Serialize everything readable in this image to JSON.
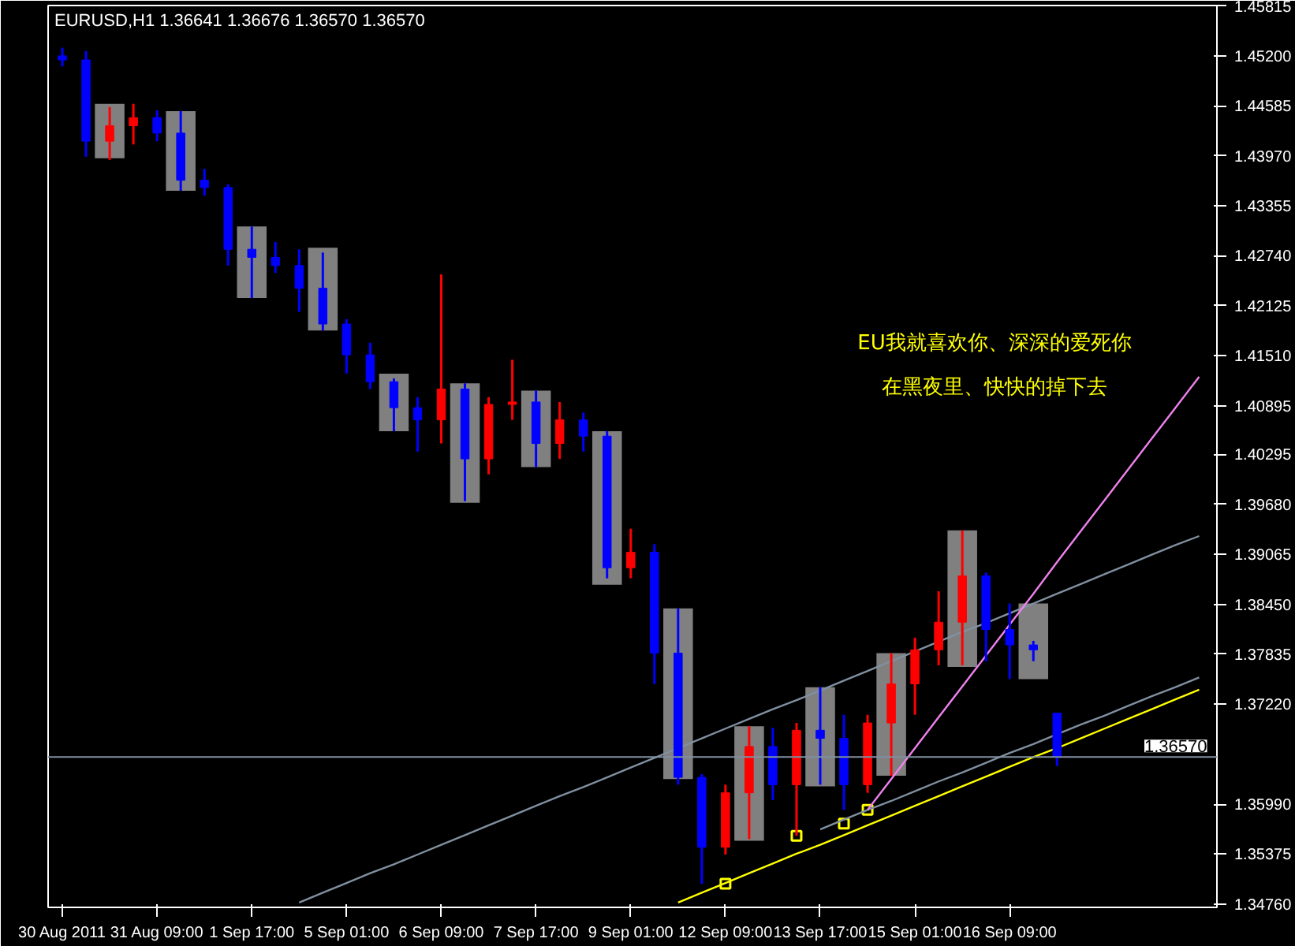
{
  "chart_data": {
    "type": "candlestick",
    "title": "EURUSD,H1  1.36641 1.36676 1.36570 1.36570",
    "categories": [
      "30 Aug 2011",
      null,
      null,
      null,
      "31 Aug 09:00",
      null,
      null,
      null,
      "1 Sep 17:00",
      null,
      null,
      null,
      "5 Sep 01:00",
      null,
      null,
      null,
      "6 Sep 09:00",
      null,
      null,
      null,
      "7 Sep 17:00",
      null,
      null,
      null,
      "9 Sep 01:00",
      null,
      null,
      null,
      "12 Sep 09:00",
      null,
      null,
      null,
      "13 Sep 17:00",
      null,
      null,
      null,
      "15 Sep 01:00",
      null,
      null,
      null,
      "16 Sep 09:00",
      null,
      null,
      null,
      null,
      null,
      null,
      null,
      null
    ],
    "ohlc": [
      [
        1.452,
        1.453,
        1.4507,
        1.4515
      ],
      [
        1.4515,
        1.4526,
        1.4396,
        1.4415
      ],
      [
        1.4415,
        1.4457,
        1.4392,
        1.4434
      ],
      [
        1.4434,
        1.4461,
        1.4411,
        1.4444
      ],
      [
        1.4444,
        1.4453,
        1.4415,
        1.4425
      ],
      [
        1.4425,
        1.4452,
        1.4354,
        1.4367
      ],
      [
        1.4367,
        1.4381,
        1.4348,
        1.4358
      ],
      [
        1.4358,
        1.4362,
        1.4262,
        1.4282
      ],
      [
        1.4282,
        1.431,
        1.4222,
        1.4272
      ],
      [
        1.4272,
        1.4291,
        1.4253,
        1.4262
      ],
      [
        1.4262,
        1.4282,
        1.4205,
        1.4234
      ],
      [
        1.4234,
        1.4278,
        1.4182,
        1.419
      ],
      [
        1.419,
        1.4196,
        1.4129,
        1.4152
      ],
      [
        1.4152,
        1.4167,
        1.411,
        1.4119
      ],
      [
        1.4119,
        1.4123,
        1.4058,
        1.4087
      ],
      [
        1.4087,
        1.41,
        1.4033,
        1.4072
      ],
      [
        1.4072,
        1.4251,
        1.4043,
        1.411
      ],
      [
        1.411,
        1.4117,
        1.3972,
        1.4024
      ],
      [
        1.4024,
        1.41,
        1.4005,
        1.4091
      ],
      [
        1.4091,
        1.4146,
        1.4072,
        1.4094
      ],
      [
        1.4094,
        1.4108,
        1.4014,
        1.4043
      ],
      [
        1.4043,
        1.4094,
        1.4024,
        1.4072
      ],
      [
        1.4072,
        1.4081,
        1.4033,
        1.4052
      ],
      [
        1.4052,
        1.4058,
        1.3877,
        1.389
      ],
      [
        1.389,
        1.3938,
        1.3877,
        1.3909
      ],
      [
        1.3909,
        1.3919,
        1.3747,
        1.3785
      ],
      [
        1.3785,
        1.384,
        1.3623,
        1.3632
      ],
      [
        1.3632,
        1.3636,
        1.3501,
        1.3546
      ],
      [
        1.3546,
        1.3623,
        1.3537,
        1.3613
      ],
      [
        1.3613,
        1.3695,
        1.3556,
        1.367
      ],
      [
        1.367,
        1.3693,
        1.3604,
        1.3623
      ],
      [
        1.3623,
        1.3699,
        1.356,
        1.369
      ],
      [
        1.369,
        1.3743,
        1.3623,
        1.368
      ],
      [
        1.368,
        1.3709,
        1.3592,
        1.3623
      ],
      [
        1.3623,
        1.3709,
        1.3613,
        1.3699
      ],
      [
        1.3699,
        1.3785,
        1.3634,
        1.3747
      ],
      [
        1.3747,
        1.3804,
        1.3709,
        1.3789
      ],
      [
        1.3789,
        1.3861,
        1.377,
        1.3823
      ],
      [
        1.3823,
        1.3936,
        1.377,
        1.388
      ],
      [
        1.388,
        1.3884,
        1.3775,
        1.3814
      ],
      [
        1.3814,
        1.3846,
        1.3753,
        1.3795
      ],
      [
        1.3795,
        1.38,
        1.3775,
        1.3789
      ],
      [
        1.3711,
        1.3711,
        1.3646,
        1.3657
      ],
      null,
      null,
      null,
      null,
      null,
      null
    ],
    "colors": [
      "#0000ff",
      "#0000ff",
      "#ff0000",
      "#ff0000",
      "#0000ff",
      "#0000ff",
      "#0000ff",
      "#0000ff",
      "#0000ff",
      "#0000ff",
      "#0000ff",
      "#0000ff",
      "#0000ff",
      "#0000ff",
      "#0000ff",
      "#0000ff",
      "#ff0000",
      "#0000ff",
      "#ff0000",
      "#ff0000",
      "#0000ff",
      "#ff0000",
      "#0000ff",
      "#0000ff",
      "#ff0000",
      "#0000ff",
      "#0000ff",
      "#0000ff",
      "#ff0000",
      "#ff0000",
      "#0000ff",
      "#ff0000",
      "#0000ff",
      "#0000ff",
      "#ff0000",
      "#ff0000",
      "#ff0000",
      "#ff0000",
      "#ff0000",
      "#0000ff",
      "#0000ff",
      "#0000ff",
      "#0000ff",
      null,
      null,
      null,
      null,
      null,
      null
    ],
    "series": [
      {
        "type": "bar",
        "color": "#808080",
        "base": [
          null,
          null,
          1.4394,
          null,
          null,
          1.4354,
          null,
          null,
          1.4222,
          null,
          null,
          1.4182,
          null,
          null,
          1.4058,
          null,
          null,
          1.397,
          null,
          null,
          1.4014,
          null,
          null,
          1.3869,
          null,
          null,
          1.363,
          null,
          null,
          1.3554,
          null,
          null,
          1.3621,
          null,
          null,
          1.3634,
          null,
          null,
          1.3768,
          null,
          null,
          1.3753,
          null,
          null,
          null,
          null,
          null,
          null,
          null
        ],
        "values": [
          null,
          null,
          0.0067,
          null,
          null,
          0.0098,
          null,
          null,
          0.0088,
          null,
          null,
          0.0102,
          null,
          null,
          0.0071,
          null,
          null,
          0.0147,
          null,
          null,
          0.0094,
          null,
          null,
          0.0189,
          null,
          null,
          0.021,
          null,
          null,
          0.0141,
          null,
          null,
          0.0122,
          null,
          null,
          0.0151,
          null,
          null,
          0.0168,
          null,
          null,
          0.0093,
          null,
          null,
          null,
          null,
          null,
          null,
          null
        ]
      },
      {
        "type": "line",
        "color": "#ffff00",
        "values": [
          null,
          null,
          null,
          null,
          null,
          null,
          null,
          null,
          null,
          null,
          null,
          null,
          null,
          null,
          null,
          null,
          null,
          null,
          null,
          null,
          null,
          null,
          null,
          null,
          null,
          null,
          1.3478,
          1.349,
          1.3502,
          1.3514,
          1.3526,
          1.3538,
          1.3549,
          1.3561,
          1.3573,
          1.3585,
          1.3597,
          1.3609,
          1.3621,
          1.3633,
          1.3645,
          1.3657,
          1.3668,
          1.368,
          1.3692,
          1.3704,
          1.3716,
          1.3728,
          1.374
        ]
      },
      {
        "type": "line",
        "color": "#8090a0",
        "values": [
          null,
          null,
          null,
          null,
          null,
          null,
          null,
          null,
          null,
          null,
          null,
          null,
          null,
          null,
          null,
          null,
          null,
          null,
          null,
          null,
          null,
          null,
          null,
          null,
          null,
          null,
          null,
          null,
          null,
          null,
          null,
          null,
          1.3568,
          1.358,
          1.3592,
          1.3603,
          1.3615,
          1.3627,
          1.3638,
          1.365,
          1.3662,
          1.3673,
          1.3685,
          1.3697,
          1.3708,
          1.372,
          1.3732,
          1.3743,
          1.3755
        ]
      },
      {
        "type": "line",
        "color": "#8090a0",
        "values": [
          null,
          null,
          null,
          null,
          null,
          null,
          null,
          null,
          null,
          null,
          1.3478,
          1.349,
          1.3502,
          1.3514,
          1.3525,
          1.3537,
          1.3549,
          1.3561,
          1.3573,
          1.3585,
          1.3597,
          1.3609,
          1.362,
          1.3632,
          1.3644,
          1.3656,
          1.3668,
          1.368,
          1.3692,
          1.3704,
          1.3716,
          1.3727,
          1.3739,
          1.3751,
          1.3763,
          1.3775,
          1.3787,
          1.3799,
          1.3811,
          1.3822,
          1.3834,
          1.3846,
          1.3858,
          1.387,
          1.3882,
          1.3894,
          1.3906,
          1.3918,
          1.3929
        ]
      },
      {
        "type": "line",
        "color": "#ee82ee",
        "values": [
          null,
          null,
          null,
          null,
          null,
          null,
          null,
          null,
          null,
          null,
          null,
          null,
          null,
          null,
          null,
          null,
          null,
          null,
          null,
          null,
          null,
          null,
          null,
          null,
          null,
          null,
          null,
          null,
          null,
          null,
          null,
          null,
          null,
          null,
          1.3592,
          1.363,
          1.3668,
          1.3706,
          1.3744,
          1.3782,
          1.382,
          1.3858,
          1.3897,
          1.3935,
          1.3973,
          1.4011,
          1.4049,
          1.4087,
          1.4125
        ]
      },
      {
        "type": "scatter",
        "color": "#ffff00",
        "marker": "square",
        "values": [
          null,
          null,
          null,
          null,
          null,
          null,
          null,
          null,
          null,
          null,
          null,
          null,
          null,
          null,
          null,
          null,
          null,
          null,
          null,
          null,
          null,
          null,
          null,
          null,
          null,
          null,
          null,
          null,
          1.3501,
          null,
          null,
          1.356,
          null,
          1.3575,
          1.3592,
          null,
          null,
          null,
          null,
          null,
          null,
          null,
          null,
          null,
          null,
          null,
          null,
          null,
          null
        ]
      }
    ],
    "ref_lines": [
      {
        "axis": "y",
        "value": 1.3657,
        "label": "1.36570",
        "color": "#8090a0"
      }
    ],
    "annotations": [
      "EU我就喜欢你、深深的爱死你",
      "在黑夜里、快快的掉下去"
    ],
    "ylim": [
      1.3472,
      1.4582
    ],
    "yticks": [
      {
        "value": 1.45815,
        "label": "1.45815"
      },
      {
        "value": 1.452,
        "label": "1.45200"
      },
      {
        "value": 1.44585,
        "label": "1.44585"
      },
      {
        "value": 1.4397,
        "label": "1.43970"
      },
      {
        "value": 1.43355,
        "label": "1.43355"
      },
      {
        "value": 1.4274,
        "label": "1.42740"
      },
      {
        "value": 1.42125,
        "label": "1.42125"
      },
      {
        "value": 1.4151,
        "label": "1.41510"
      },
      {
        "value": 1.40895,
        "label": "1.40895"
      },
      {
        "value": 1.40295,
        "label": "1.40295"
      },
      {
        "value": 1.3968,
        "label": "1.39680"
      },
      {
        "value": 1.39065,
        "label": "1.39065"
      },
      {
        "value": 1.3845,
        "label": "1.38450"
      },
      {
        "value": 1.37835,
        "label": "1.37835"
      },
      {
        "value": 1.3722,
        "label": "1.37220"
      },
      {
        "value": 1.3599,
        "label": "1.35990"
      },
      {
        "value": 1.35375,
        "label": "1.35375"
      },
      {
        "value": 1.3476,
        "label": "1.34760"
      }
    ],
    "grid": false
  }
}
